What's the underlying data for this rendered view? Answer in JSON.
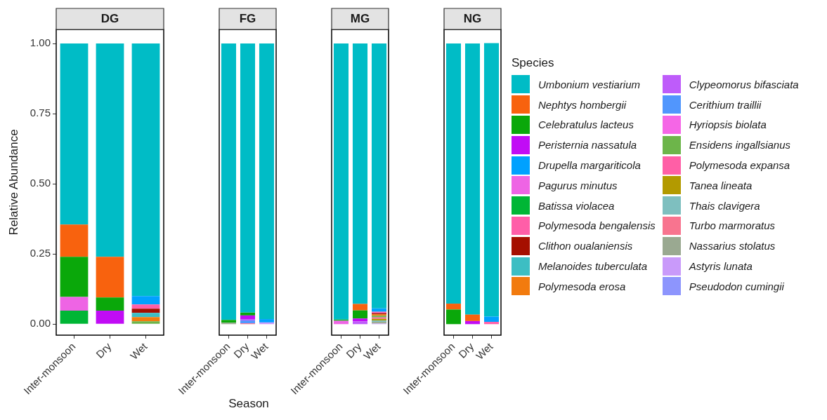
{
  "chart_data": [
    {
      "type": "bar",
      "title": "DG",
      "ylabel": "Relative Abundance",
      "legend": "right",
      "legend_title": "Species",
      "stacked": true,
      "categories": [
        "Inter-monsoon",
        "Dry",
        "Wet"
      ],
      "ylim": [
        -0.039,
        1.05
      ],
      "yticks": [
        {
          "value": 0,
          "label": "0.00"
        },
        {
          "value": 0.25,
          "label": "0.25"
        },
        {
          "value": 0.5,
          "label": "0.50"
        },
        {
          "value": 0.75,
          "label": "0.75"
        },
        {
          "value": 1,
          "label": "1.00"
        }
      ],
      "series": [
        {
          "name": "Pseudodon cumingii",
          "color": "#8d95fd",
          "values": [
            0,
            0,
            0
          ]
        },
        {
          "name": "Astyris lunata",
          "color": "#c99afa",
          "values": [
            0,
            0,
            0
          ]
        },
        {
          "name": "Nassarius stolatus",
          "color": "#9aa991",
          "values": [
            0,
            0,
            0
          ]
        },
        {
          "name": "Turbo marmoratus",
          "color": "#f8748f",
          "values": [
            0,
            0,
            0
          ]
        },
        {
          "name": "Thais clavigera",
          "color": "#7ebfbf",
          "values": [
            0,
            0,
            0
          ]
        },
        {
          "name": "Tanea lineata",
          "color": "#b39a00",
          "values": [
            0,
            0,
            0
          ]
        },
        {
          "name": "Polymesoda expansa",
          "color": "#ff5fa6",
          "values": [
            0,
            0,
            0
          ]
        },
        {
          "name": "Ensidens ingallsianus",
          "color": "#6db54a",
          "values": [
            0,
            0,
            0.01
          ]
        },
        {
          "name": "Hyriopsis biolata",
          "color": "#f566e6",
          "values": [
            0,
            0,
            0
          ]
        },
        {
          "name": "Cerithium traillii",
          "color": "#5196fd",
          "values": [
            0,
            0,
            0
          ]
        },
        {
          "name": "Clypeomorus bifasciata",
          "color": "#be5cfa",
          "values": [
            0,
            0,
            0
          ]
        },
        {
          "name": "Polymesoda erosa",
          "color": "#f27b0e",
          "values": [
            0,
            0,
            0.015
          ]
        },
        {
          "name": "Melanoides tuberculata",
          "color": "#3dbec3",
          "values": [
            0,
            0,
            0.015
          ]
        },
        {
          "name": "Clithon oualaniensis",
          "color": "#a50f00",
          "values": [
            0,
            0,
            0.015
          ]
        },
        {
          "name": "Polymesoda bengalensis",
          "color": "#ff5ea8",
          "values": [
            0,
            0,
            0.015
          ]
        },
        {
          "name": "Batissa violacea",
          "color": "#00b635",
          "values": [
            0.048,
            0,
            0
          ]
        },
        {
          "name": "Pagurus minutus",
          "color": "#ee64e4",
          "values": [
            0.049,
            0,
            0
          ]
        },
        {
          "name": "Drupella margariticola",
          "color": "#00a1ff",
          "values": [
            0,
            0,
            0.03
          ]
        },
        {
          "name": "Peristernia nassatula",
          "color": "#c10cf5",
          "values": [
            0,
            0.048,
            0
          ]
        },
        {
          "name": "Celebratulus lacteus",
          "color": "#0aa80a",
          "values": [
            0.143,
            0.047,
            0
          ]
        },
        {
          "name": "Nephtys hombergii",
          "color": "#f8620e",
          "values": [
            0.115,
            0.145,
            0
          ]
        },
        {
          "name": "Umbonium vestiarium",
          "color": "#00bcc6",
          "values": [
            0.645,
            0.76,
            0.9
          ]
        }
      ]
    },
    {
      "type": "bar",
      "title": "FG",
      "xlabel": "Season",
      "stacked": true,
      "tick_labels": "x",
      "categories": [
        "Inter-monsoon",
        "Dry",
        "Wet"
      ],
      "ylim": [
        -0.039,
        1.05
      ],
      "series": [
        {
          "color": "#8d95fd",
          "values": [
            0,
            0,
            0
          ]
        },
        {
          "color": "#c99afa",
          "values": [
            0,
            0,
            0.006
          ]
        },
        {
          "color": "#9aa991",
          "values": [
            0.005,
            0,
            0
          ]
        },
        {
          "color": "#f8748f",
          "values": [
            0,
            0.003,
            0
          ]
        },
        {
          "color": "#7ebfbf",
          "values": [
            0,
            0,
            0
          ]
        },
        {
          "color": "#b39a00",
          "values": [
            0,
            0,
            0
          ]
        },
        {
          "color": "#ff5fa6",
          "values": [
            0,
            0,
            0
          ]
        },
        {
          "color": "#6db54a",
          "values": [
            0,
            0,
            0
          ]
        },
        {
          "color": "#f566e6",
          "values": [
            0,
            0,
            0
          ]
        },
        {
          "color": "#5196fd",
          "values": [
            0,
            0.01,
            0
          ]
        },
        {
          "color": "#be5cfa",
          "values": [
            0,
            0.005,
            0
          ]
        },
        {
          "color": "#f27b0e",
          "values": [
            0,
            0,
            0
          ]
        },
        {
          "color": "#3dbec3",
          "values": [
            0,
            0,
            0
          ]
        },
        {
          "color": "#a50f00",
          "values": [
            0,
            0,
            0
          ]
        },
        {
          "color": "#ff5ea8",
          "values": [
            0,
            0,
            0
          ]
        },
        {
          "color": "#00b635",
          "values": [
            0,
            0,
            0
          ]
        },
        {
          "color": "#ee64e4",
          "values": [
            0,
            0,
            0
          ]
        },
        {
          "color": "#00a1ff",
          "values": [
            0,
            0,
            0.012
          ]
        },
        {
          "color": "#c10cf5",
          "values": [
            0,
            0.013,
            0
          ]
        },
        {
          "color": "#0aa80a",
          "values": [
            0.01,
            0.01,
            0
          ]
        },
        {
          "color": "#f8620e",
          "values": [
            0,
            0,
            0
          ]
        },
        {
          "color": "#00bcc6",
          "values": [
            0.985,
            0.959,
            0.982
          ]
        }
      ]
    },
    {
      "type": "bar",
      "title": "MG",
      "stacked": true,
      "tick_labels": "x",
      "categories": [
        "Inter-monsoon",
        "Dry",
        "Wet"
      ],
      "ylim": [
        -0.039,
        1.05
      ],
      "series": [
        {
          "color": "#8d95fd",
          "values": [
            0,
            0,
            0
          ]
        },
        {
          "color": "#c99afa",
          "values": [
            0,
            0,
            0.002
          ]
        },
        {
          "color": "#9aa991",
          "values": [
            0,
            0,
            0.006
          ]
        },
        {
          "color": "#f8748f",
          "values": [
            0,
            0,
            0
          ]
        },
        {
          "color": "#7ebfbf",
          "values": [
            0,
            0,
            0.005
          ]
        },
        {
          "color": "#b39a00",
          "values": [
            0,
            0,
            0.006
          ]
        },
        {
          "color": "#ff5fa6",
          "values": [
            0,
            0,
            0.005
          ]
        },
        {
          "color": "#6db54a",
          "values": [
            0,
            0,
            0.006
          ]
        },
        {
          "color": "#f566e6",
          "values": [
            0,
            0,
            0
          ]
        },
        {
          "color": "#5196fd",
          "values": [
            0,
            0,
            0
          ]
        },
        {
          "color": "#be5cfa",
          "values": [
            0,
            0.01,
            0
          ]
        },
        {
          "color": "#f27b0e",
          "values": [
            0,
            0,
            0.005
          ]
        },
        {
          "color": "#3dbec3",
          "values": [
            0,
            0,
            0
          ]
        },
        {
          "color": "#a50f00",
          "values": [
            0,
            0,
            0.004
          ]
        },
        {
          "color": "#ff5ea8",
          "values": [
            0,
            0,
            0.005
          ]
        },
        {
          "color": "#00b635",
          "values": [
            0,
            0,
            0
          ]
        },
        {
          "color": "#ee64e4",
          "values": [
            0.012,
            0,
            0
          ]
        },
        {
          "color": "#00a1ff",
          "values": [
            0,
            0,
            0.012
          ]
        },
        {
          "color": "#c10cf5",
          "values": [
            0,
            0.01,
            0
          ]
        },
        {
          "color": "#0aa80a",
          "values": [
            0.004,
            0.029,
            0
          ]
        },
        {
          "color": "#f8620e",
          "values": [
            0,
            0.023,
            0
          ]
        },
        {
          "color": "#00bcc6",
          "values": [
            0.984,
            0.928,
            0.944
          ]
        }
      ]
    },
    {
      "type": "bar",
      "title": "NG",
      "stacked": true,
      "tick_labels": "x",
      "categories": [
        "Inter-monsoon",
        "Dry",
        "Wet"
      ],
      "ylim": [
        -0.039,
        1.05
      ],
      "series": [
        {
          "color": "#8d95fd",
          "values": [
            0,
            0,
            0
          ]
        },
        {
          "color": "#c99afa",
          "values": [
            0,
            0,
            0
          ]
        },
        {
          "color": "#9aa991",
          "values": [
            0,
            0,
            0
          ]
        },
        {
          "color": "#f8748f",
          "values": [
            0,
            0,
            0
          ]
        },
        {
          "color": "#7ebfbf",
          "values": [
            0,
            0,
            0
          ]
        },
        {
          "color": "#b39a00",
          "values": [
            0,
            0,
            0
          ]
        },
        {
          "color": "#ff5fa6",
          "values": [
            0,
            0,
            0
          ]
        },
        {
          "color": "#6db54a",
          "values": [
            0,
            0,
            0
          ]
        },
        {
          "color": "#f566e6",
          "values": [
            0,
            0,
            0
          ]
        },
        {
          "color": "#5196fd",
          "values": [
            0,
            0,
            0
          ]
        },
        {
          "color": "#be5cfa",
          "values": [
            0,
            0,
            0
          ]
        },
        {
          "color": "#f27b0e",
          "values": [
            0,
            0,
            0
          ]
        },
        {
          "color": "#3dbec3",
          "values": [
            0,
            0,
            0
          ]
        },
        {
          "color": "#a50f00",
          "values": [
            0,
            0,
            0
          ]
        },
        {
          "color": "#ff5ea8",
          "values": [
            0,
            0,
            0.008
          ]
        },
        {
          "color": "#00b635",
          "values": [
            0,
            0,
            0
          ]
        },
        {
          "color": "#ee64e4",
          "values": [
            0,
            0,
            0
          ]
        },
        {
          "color": "#00a1ff",
          "values": [
            0,
            0,
            0.019
          ]
        },
        {
          "color": "#c10cf5",
          "values": [
            0,
            0.011,
            0
          ]
        },
        {
          "color": "#0aa80a",
          "values": [
            0.052,
            0,
            0
          ]
        },
        {
          "color": "#f8620e",
          "values": [
            0.021,
            0.023,
            0
          ]
        },
        {
          "color": "#00bcc6",
          "values": [
            0.927,
            0.966,
            0.974
          ]
        }
      ]
    }
  ]
}
